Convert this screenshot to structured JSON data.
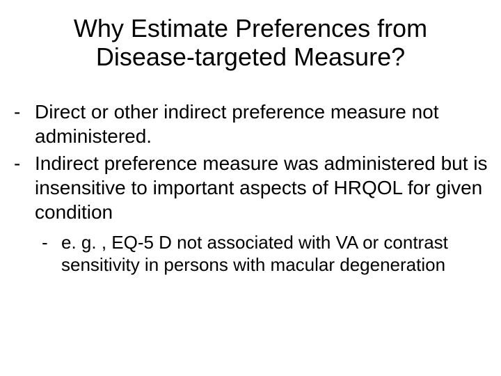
{
  "slide": {
    "title": "Why Estimate Preferences from Disease-targeted Measure?",
    "bullets": [
      {
        "marker": "-",
        "text": "Direct or other indirect preference measure not administered."
      },
      {
        "marker": "-",
        "text": "Indirect preference measure was administered but is insensitive to important aspects of HRQOL for given condition"
      }
    ],
    "sub_bullets": [
      {
        "marker": "-",
        "text": "e. g. , EQ-5 D not associated with VA or contrast sensitivity in persons with macular degeneration"
      }
    ],
    "styles": {
      "background_color": "#ffffff",
      "text_color": "#000000",
      "title_fontsize": 36,
      "bullet_fontsize": 28,
      "sub_bullet_fontsize": 26,
      "font_family": "Arial"
    }
  }
}
